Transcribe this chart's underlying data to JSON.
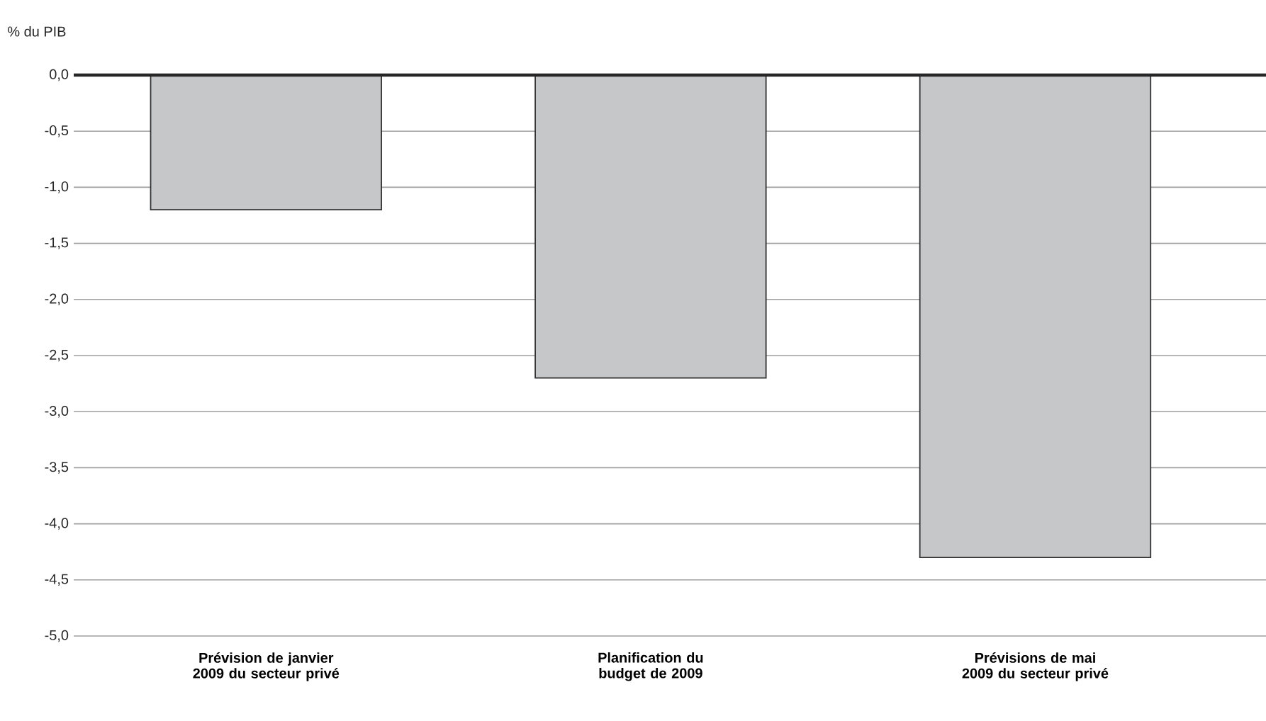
{
  "chart_data": {
    "type": "bar",
    "ylabel": "% du PIB",
    "categories": [
      "Prévision de janvier 2009 du secteur privé",
      "Planification du budget de 2009",
      "Prévisions de mai 2009 du secteur privé"
    ],
    "values": [
      -1.2,
      -2.7,
      -4.3
    ],
    "color": "#c6c7c9",
    "ylim": [
      -5.0,
      0.0
    ],
    "yticks": [
      {
        "value": 0.0,
        "label": "0,0"
      },
      {
        "value": -0.5,
        "label": "-0,5"
      },
      {
        "value": -1.0,
        "label": "-1,0"
      },
      {
        "value": -1.5,
        "label": "-1,5"
      },
      {
        "value": -2.0,
        "label": "-2,0"
      },
      {
        "value": -2.5,
        "label": "-2,5"
      },
      {
        "value": -3.0,
        "label": "-3,0"
      },
      {
        "value": -3.5,
        "label": "-3,5"
      },
      {
        "value": -4.0,
        "label": "-4,0"
      },
      {
        "value": -4.5,
        "label": "-4,5"
      },
      {
        "value": -5.0,
        "label": "-5,0"
      }
    ],
    "grid": "y"
  }
}
